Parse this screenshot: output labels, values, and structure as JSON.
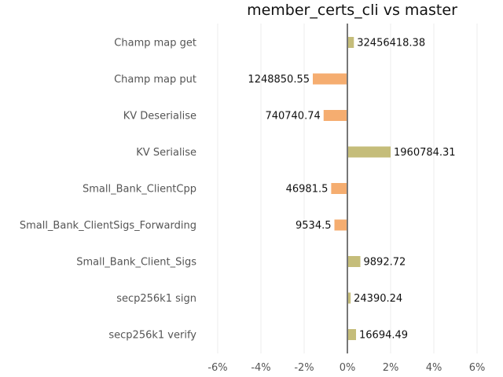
{
  "chart_data": {
    "type": "bar",
    "orientation": "horizontal",
    "title": "member_certs_cli vs master",
    "categories": [
      "Champ map get",
      "Champ map put",
      "KV Deserialise",
      "KV Serialise",
      "Small_Bank_ClientCpp",
      "Small_Bank_ClientSigs_Forwarding",
      "Small_Bank_Client_Sigs",
      "secp256k1 sign",
      "secp256k1 verify"
    ],
    "values_percent": [
      0.3,
      -1.6,
      -1.1,
      2.0,
      -0.75,
      -0.6,
      0.6,
      0.15,
      0.4
    ],
    "value_labels": [
      "32456418.38",
      "1248850.55",
      "740740.74",
      "1960784.31",
      "46981.5",
      "9534.5",
      "9892.72",
      "24390.24",
      "16694.49"
    ],
    "xlim": [
      -6.5,
      6.5
    ],
    "xticks": [
      -6,
      -4,
      -2,
      0,
      2,
      4,
      6
    ],
    "xtick_labels": [
      "-6%",
      "-4%",
      "-2%",
      "0%",
      "2%",
      "4%",
      "6%"
    ],
    "grid": "vertical",
    "colors": {
      "positive": "#c5bd7a",
      "negative": "#f5ad70",
      "zero_line": "#777777",
      "grid": "#eeeeee"
    }
  }
}
